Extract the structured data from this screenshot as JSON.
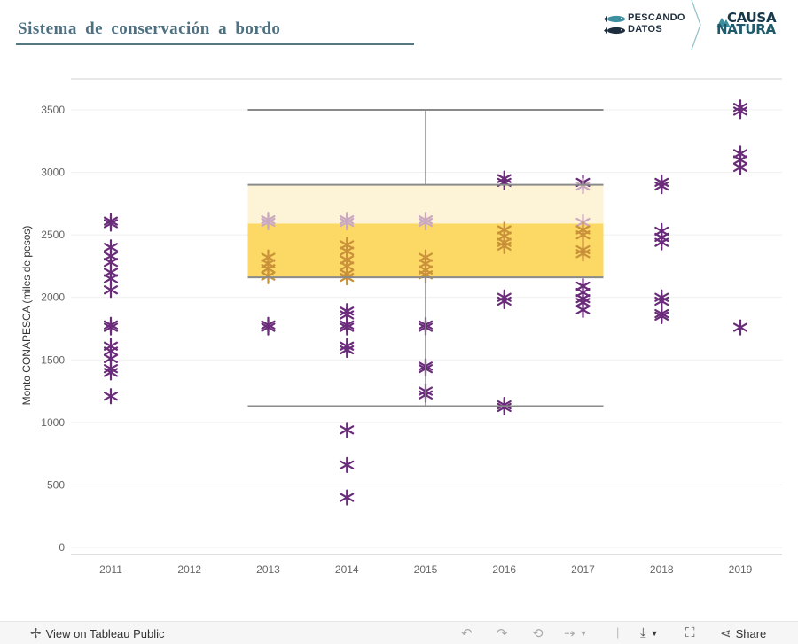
{
  "header": {
    "title": "Sistema  de  conservación  a  bordo",
    "logo_left": [
      "PESCANDO",
      "DATOS"
    ],
    "logo_right": [
      "CAUSA",
      "NATURA"
    ]
  },
  "footer": {
    "view_label": "View on Tableau Public",
    "share_label": "Share"
  },
  "colors": {
    "title": "#4e7080",
    "points": "#6a2c7a",
    "points_light": "#c9a8c0",
    "band_outer": "#fdf3d6",
    "band_inner": "#fcd964",
    "reference_lines": "#8a8a8a"
  },
  "chart_data": {
    "type": "scatter",
    "ylabel": "Monto CONAPESCA (miles de pesos)",
    "xlabel": "",
    "ylim": [
      0,
      3500
    ],
    "yticks": [
      0,
      500,
      1000,
      1500,
      2000,
      2500,
      3000,
      3500
    ],
    "categories": [
      "2011",
      "2012",
      "2013",
      "2014",
      "2015",
      "2016",
      "2017",
      "2018",
      "2019"
    ],
    "marker": "snowflake",
    "points": [
      {
        "x": "2011",
        "y": 2610
      },
      {
        "x": "2011",
        "y": 2590
      },
      {
        "x": "2011",
        "y": 2400
      },
      {
        "x": "2011",
        "y": 2330
      },
      {
        "x": "2011",
        "y": 2280
      },
      {
        "x": "2011",
        "y": 2200
      },
      {
        "x": "2011",
        "y": 2150
      },
      {
        "x": "2011",
        "y": 2060
      },
      {
        "x": "2011",
        "y": 1780
      },
      {
        "x": "2011",
        "y": 1760
      },
      {
        "x": "2011",
        "y": 1610
      },
      {
        "x": "2011",
        "y": 1570
      },
      {
        "x": "2011",
        "y": 1510
      },
      {
        "x": "2011",
        "y": 1430
      },
      {
        "x": "2011",
        "y": 1400
      },
      {
        "x": "2011",
        "y": 1210
      },
      {
        "x": "2013",
        "y": 2620
      },
      {
        "x": "2013",
        "y": 2600
      },
      {
        "x": "2013",
        "y": 2320
      },
      {
        "x": "2013",
        "y": 2270
      },
      {
        "x": "2013",
        "y": 2230
      },
      {
        "x": "2013",
        "y": 2170
      },
      {
        "x": "2013",
        "y": 1780
      },
      {
        "x": "2013",
        "y": 1760
      },
      {
        "x": "2014",
        "y": 2620
      },
      {
        "x": "2014",
        "y": 2600
      },
      {
        "x": "2014",
        "y": 2420
      },
      {
        "x": "2014",
        "y": 2370
      },
      {
        "x": "2014",
        "y": 2300
      },
      {
        "x": "2014",
        "y": 2250
      },
      {
        "x": "2014",
        "y": 2190
      },
      {
        "x": "2014",
        "y": 2160
      },
      {
        "x": "2014",
        "y": 1890
      },
      {
        "x": "2014",
        "y": 1860
      },
      {
        "x": "2014",
        "y": 1780
      },
      {
        "x": "2014",
        "y": 1760
      },
      {
        "x": "2014",
        "y": 1610
      },
      {
        "x": "2014",
        "y": 1580
      },
      {
        "x": "2014",
        "y": 940
      },
      {
        "x": "2014",
        "y": 660
      },
      {
        "x": "2014",
        "y": 400
      },
      {
        "x": "2015",
        "y": 2620
      },
      {
        "x": "2015",
        "y": 2600
      },
      {
        "x": "2015",
        "y": 2320
      },
      {
        "x": "2015",
        "y": 2270
      },
      {
        "x": "2015",
        "y": 2220
      },
      {
        "x": "2015",
        "y": 2180
      },
      {
        "x": "2015",
        "y": 1780
      },
      {
        "x": "2015",
        "y": 1760
      },
      {
        "x": "2015",
        "y": 1450
      },
      {
        "x": "2015",
        "y": 1430
      },
      {
        "x": "2015",
        "y": 1250
      },
      {
        "x": "2015",
        "y": 1220
      },
      {
        "x": "2016",
        "y": 2950
      },
      {
        "x": "2016",
        "y": 2920
      },
      {
        "x": "2016",
        "y": 2540
      },
      {
        "x": "2016",
        "y": 2490
      },
      {
        "x": "2016",
        "y": 2440
      },
      {
        "x": "2016",
        "y": 2410
      },
      {
        "x": "2016",
        "y": 2000
      },
      {
        "x": "2016",
        "y": 1970
      },
      {
        "x": "2016",
        "y": 1140
      },
      {
        "x": "2016",
        "y": 1120
      },
      {
        "x": "2017",
        "y": 2920
      },
      {
        "x": "2017",
        "y": 2890
      },
      {
        "x": "2017",
        "y": 2600
      },
      {
        "x": "2017",
        "y": 2540
      },
      {
        "x": "2017",
        "y": 2500
      },
      {
        "x": "2017",
        "y": 2380
      },
      {
        "x": "2017",
        "y": 2350
      },
      {
        "x": "2017",
        "y": 2090
      },
      {
        "x": "2017",
        "y": 2040
      },
      {
        "x": "2017",
        "y": 1990
      },
      {
        "x": "2017",
        "y": 1960
      },
      {
        "x": "2017",
        "y": 1900
      },
      {
        "x": "2018",
        "y": 2920
      },
      {
        "x": "2018",
        "y": 2890
      },
      {
        "x": "2018",
        "y": 2530
      },
      {
        "x": "2018",
        "y": 2480
      },
      {
        "x": "2018",
        "y": 2440
      },
      {
        "x": "2018",
        "y": 2000
      },
      {
        "x": "2018",
        "y": 1970
      },
      {
        "x": "2018",
        "y": 1870
      },
      {
        "x": "2018",
        "y": 1850
      },
      {
        "x": "2019",
        "y": 3520
      },
      {
        "x": "2019",
        "y": 3490
      },
      {
        "x": "2019",
        "y": 3150
      },
      {
        "x": "2019",
        "y": 3100
      },
      {
        "x": "2019",
        "y": 3040
      },
      {
        "x": "2019",
        "y": 1760
      }
    ],
    "reference_band": {
      "x_from": "2013",
      "x_to": "2017",
      "q1": 2160,
      "median": 2590,
      "q3": 2900
    },
    "reference_whiskers": {
      "x": "2015",
      "low": 1130,
      "high": 3500
    },
    "grid": true
  }
}
